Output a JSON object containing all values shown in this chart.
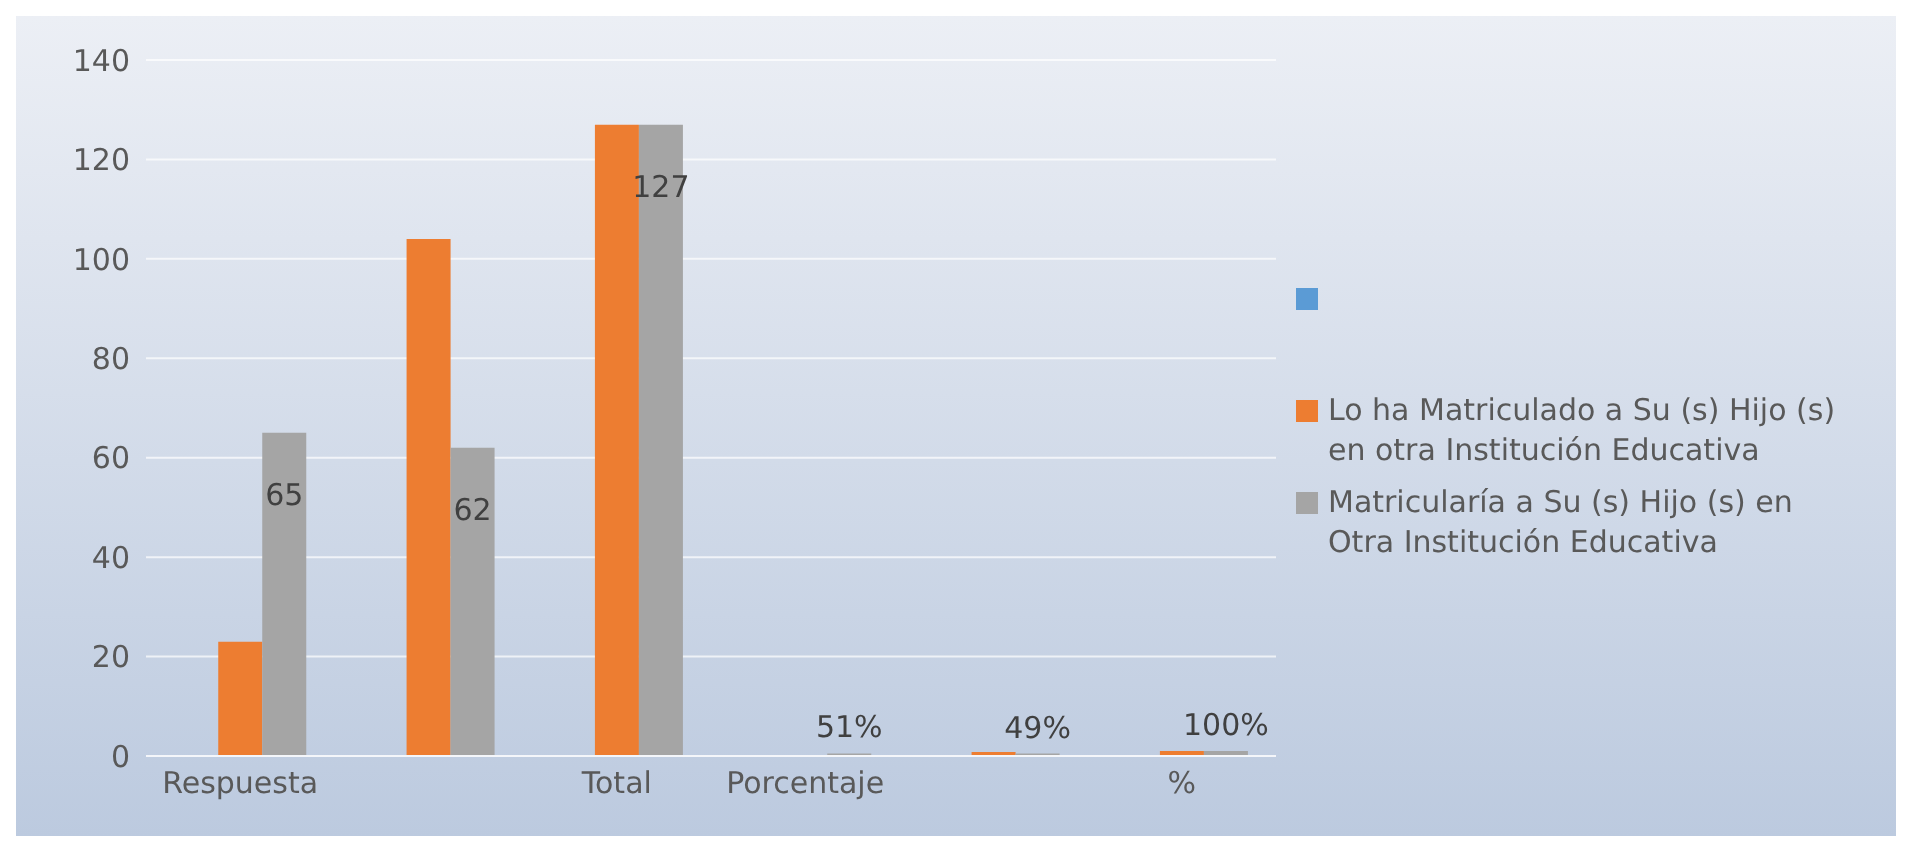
{
  "chart_data": {
    "type": "bar",
    "categories": [
      "Respuesta",
      null,
      "Total",
      "Porcentaje",
      null,
      "%"
    ],
    "series": [
      {
        "color": "#5b9bd5",
        "values": [
          null,
          null,
          null,
          null,
          null,
          null
        ]
      },
      {
        "name": "Lo ha Matriculado a Su (s) Hijo (s) en otra Institución Educativa",
        "color": "#ed7d31",
        "values": [
          23,
          104,
          127,
          0.2,
          0.8,
          1
        ]
      },
      {
        "name": "Matricularía a Su (s) Hijo (s) en Otra Institución Educativa",
        "color": "#a5a5a5",
        "values": [
          65,
          62,
          127,
          0.51,
          0.49,
          1
        ],
        "value_labels": [
          "65",
          "62",
          "127",
          "51%",
          "49%",
          "100%"
        ]
      }
    ],
    "ylim": [
      0,
      140
    ],
    "yticks": [
      0,
      20,
      40,
      60,
      80,
      100,
      120,
      140
    ],
    "grid": "y",
    "legend": "right"
  }
}
